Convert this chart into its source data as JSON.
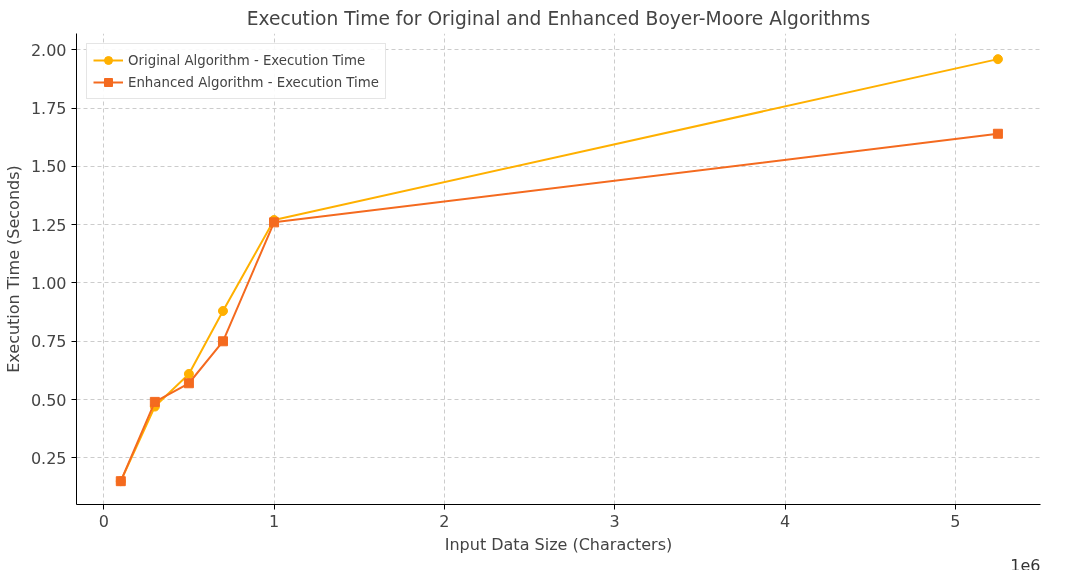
{
  "chart_data": {
    "type": "line",
    "title": "Execution Time for Original and Enhanced Boyer-Moore Algorithms",
    "xlabel": "Input Data Size (Characters)",
    "ylabel": "Execution Time (Seconds)",
    "x": [
      0.1,
      0.3,
      0.5,
      0.7,
      1.0,
      5.25
    ],
    "series": [
      {
        "name": "Original Algorithm - Execution Time",
        "color": "#ffb000",
        "marker": "circle",
        "values": [
          0.15,
          0.47,
          0.61,
          0.88,
          1.27,
          1.96
        ]
      },
      {
        "name": "Enhanced Algorithm - Execution Time",
        "color": "#f46a1f",
        "marker": "square",
        "values": [
          0.15,
          0.49,
          0.57,
          0.75,
          1.26,
          1.64
        ]
      }
    ],
    "xlim": [
      -0.16,
      5.5
    ],
    "ylim": [
      0.05,
      2.07
    ],
    "xticks": [
      0,
      1,
      2,
      3,
      4,
      5
    ],
    "yticks": [
      {
        "value": 0.25,
        "label": "0.25"
      },
      {
        "value": 0.5,
        "label": "0.50"
      },
      {
        "value": 0.75,
        "label": "0.75"
      },
      {
        "value": 1.0,
        "label": "1.00"
      },
      {
        "value": 1.25,
        "label": "1.25"
      },
      {
        "value": 1.5,
        "label": "1.50"
      },
      {
        "value": 1.75,
        "label": "1.75"
      },
      {
        "value": 2.0,
        "label": "2.00"
      }
    ],
    "annotations": [
      "1e6"
    ],
    "grid": true,
    "legend": "top left",
    "line_style": "solid"
  }
}
